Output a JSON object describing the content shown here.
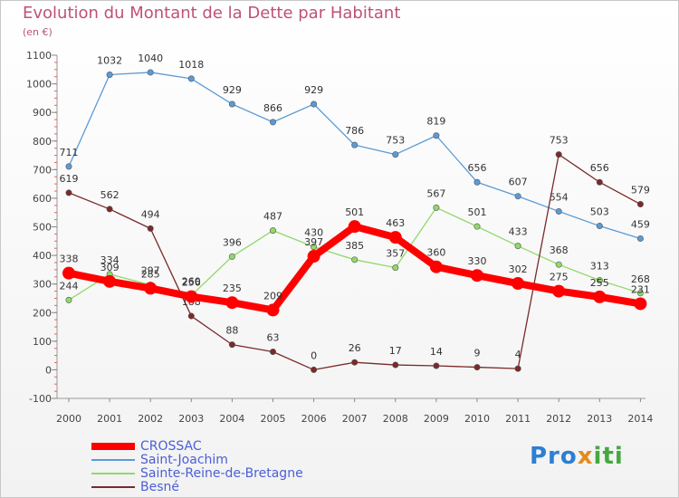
{
  "chart_data": {
    "type": "line",
    "title": "Evolution du Montant de la Dette par Habitant",
    "unit_label": "(en €)",
    "x": [
      "2000",
      "2001",
      "2002",
      "2003",
      "2004",
      "2005",
      "2006",
      "2007",
      "2008",
      "2009",
      "2010",
      "2011",
      "2012",
      "2013",
      "2014"
    ],
    "ylim": [
      -100,
      1100
    ],
    "yticks": [
      -100,
      0,
      100,
      200,
      300,
      400,
      500,
      600,
      700,
      800,
      900,
      1000,
      1100
    ],
    "grid": false,
    "legend_position": "bottom-left",
    "series": [
      {
        "name": "Saint-Joachim",
        "color": "#5b9bd5",
        "values": [
          711,
          1032,
          1040,
          1018,
          929,
          866,
          929,
          786,
          753,
          819,
          656,
          607,
          554,
          503,
          459
        ]
      },
      {
        "name": "Sainte-Reine-de-Bretagne",
        "color": "#90d96a",
        "values": [
          244,
          334,
          297,
          260,
          396,
          487,
          430,
          385,
          357,
          567,
          501,
          433,
          368,
          313,
          268
        ]
      },
      {
        "name": "Besné",
        "color": "#7a2a2a",
        "values": [
          619,
          562,
          494,
          188,
          88,
          63,
          0,
          26,
          17,
          14,
          9,
          4,
          753,
          656,
          579
        ]
      },
      {
        "name": "CROSSAC",
        "color": "#ff0000",
        "values": [
          338,
          309,
          285,
          256,
          235,
          209,
          397,
          501,
          463,
          360,
          330,
          302,
          275,
          255,
          231
        ]
      }
    ],
    "legend_order": [
      "CROSSAC",
      "Saint-Joachim",
      "Sainte-Reine-de-Bretagne",
      "Besné"
    ]
  },
  "logo": {
    "part1": "Pro",
    "part2": "x",
    "part3": "iti"
  }
}
